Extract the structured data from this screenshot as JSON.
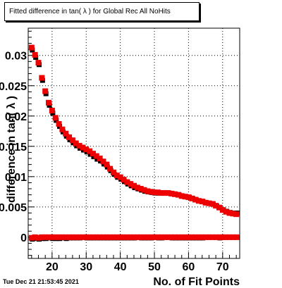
{
  "title": "Fitted difference in tan( λ ) for Global Rec All NoHits",
  "timestamp": "Tue Dec 21 21:53:45 2021",
  "chart_data": {
    "type": "scatter",
    "title": "Fitted difference in tan( λ ) for Global Rec All NoHits",
    "xlabel": "No. of Fit Points",
    "ylabel": "difference in tan( λ )",
    "xlim": [
      13,
      75
    ],
    "ylim": [
      -0.0035,
      0.0345
    ],
    "x_ticks": [
      20,
      30,
      40,
      50,
      60,
      70
    ],
    "y_ticks": [
      0,
      0.005,
      0.01,
      0.015,
      0.02,
      0.025,
      0.03
    ],
    "y_tick_labels": [
      "0",
      "0.005",
      "0.01",
      "0.015",
      "0.02",
      "0.025",
      "0.03"
    ],
    "grid": true,
    "colors": {
      "red": "#ee0000",
      "black": "#000000",
      "box": "#000000"
    },
    "series": [
      {
        "color": "red",
        "marker": "square",
        "points": [
          [
            14,
            0.0313
          ],
          [
            15,
            0.0301
          ],
          [
            16,
            0.0288
          ],
          [
            17,
            0.0263
          ],
          [
            18,
            0.0241
          ],
          [
            19,
            0.0222
          ],
          [
            20,
            0.0209
          ],
          [
            21,
            0.0197
          ],
          [
            22,
            0.0187
          ],
          [
            23,
            0.0178
          ],
          [
            24,
            0.0171
          ],
          [
            25,
            0.0165
          ],
          [
            26,
            0.016
          ],
          [
            27,
            0.0155
          ],
          [
            28,
            0.0151
          ],
          [
            29,
            0.0148
          ],
          [
            30,
            0.0145
          ],
          [
            31,
            0.0142
          ],
          [
            32,
            0.0138
          ],
          [
            33,
            0.0134
          ],
          [
            34,
            0.013
          ],
          [
            35,
            0.0125
          ],
          [
            36,
            0.012
          ],
          [
            37,
            0.0113
          ],
          [
            38,
            0.0107
          ],
          [
            39,
            0.0102
          ],
          [
            40,
            0.0099
          ],
          [
            41,
            0.0095
          ],
          [
            42,
            0.0091
          ],
          [
            43,
            0.0088
          ],
          [
            44,
            0.0085
          ],
          [
            45,
            0.0082
          ],
          [
            46,
            0.008
          ],
          [
            47,
            0.0078
          ],
          [
            48,
            0.0076
          ],
          [
            49,
            0.0075
          ],
          [
            50,
            0.0074
          ],
          [
            51,
            0.0074
          ],
          [
            52,
            0.0073
          ],
          [
            53,
            0.0073
          ],
          [
            54,
            0.0073
          ],
          [
            55,
            0.0072
          ],
          [
            56,
            0.0071
          ],
          [
            57,
            0.007
          ],
          [
            58,
            0.0068
          ],
          [
            59,
            0.0067
          ],
          [
            60,
            0.0066
          ],
          [
            61,
            0.0064
          ],
          [
            62,
            0.0062
          ],
          [
            63,
            0.006
          ],
          [
            64,
            0.0059
          ],
          [
            65,
            0.0057
          ],
          [
            66,
            0.0056
          ],
          [
            67,
            0.0055
          ],
          [
            68,
            0.0052
          ],
          [
            69,
            0.0049
          ],
          [
            70,
            0.0045
          ],
          [
            71,
            0.0042
          ],
          [
            72,
            0.004
          ],
          [
            73,
            0.0039
          ],
          [
            74,
            0.0038
          ]
        ]
      },
      {
        "color": "black",
        "marker": "square",
        "points": [
          [
            14,
            0.031
          ],
          [
            15,
            0.0298
          ],
          [
            16,
            0.0286
          ],
          [
            17,
            0.026
          ],
          [
            18,
            0.0238
          ],
          [
            19,
            0.0219
          ],
          [
            20,
            0.0206
          ],
          [
            21,
            0.0194
          ],
          [
            22,
            0.0184
          ],
          [
            23,
            0.0175
          ],
          [
            24,
            0.0168
          ],
          [
            25,
            0.0162
          ],
          [
            26,
            0.0157
          ],
          [
            27,
            0.0152
          ],
          [
            28,
            0.0148
          ],
          [
            29,
            0.0145
          ],
          [
            30,
            0.0142
          ],
          [
            31,
            0.0138
          ],
          [
            32,
            0.0134
          ],
          [
            33,
            0.013
          ],
          [
            34,
            0.0127
          ],
          [
            35,
            0.0122
          ],
          [
            36,
            0.0117
          ],
          [
            37,
            0.0111
          ],
          [
            38,
            0.0105
          ],
          [
            39,
            0.01
          ],
          [
            40,
            0.0097
          ],
          [
            41,
            0.0093
          ],
          [
            42,
            0.0089
          ],
          [
            43,
            0.0086
          ],
          [
            44,
            0.0083
          ],
          [
            45,
            0.0081
          ],
          [
            46,
            0.0079
          ],
          [
            47,
            0.0077
          ],
          [
            48,
            0.0076
          ],
          [
            49,
            0.0075
          ],
          [
            50,
            0.0074
          ],
          [
            51,
            0.0074
          ],
          [
            52,
            0.0074
          ],
          [
            53,
            0.0074
          ],
          [
            54,
            0.0074
          ],
          [
            55,
            0.0073
          ],
          [
            56,
            0.0072
          ],
          [
            57,
            0.0071
          ],
          [
            58,
            0.0069
          ],
          [
            59,
            0.0068
          ],
          [
            60,
            0.0067
          ],
          [
            61,
            0.0065
          ],
          [
            62,
            0.0063
          ],
          [
            63,
            0.0061
          ],
          [
            64,
            0.006
          ],
          [
            65,
            0.0058
          ],
          [
            66,
            0.0057
          ],
          [
            67,
            0.0056
          ],
          [
            68,
            0.0053
          ],
          [
            69,
            0.005
          ],
          [
            70,
            0.0046
          ],
          [
            71,
            0.0044
          ],
          [
            72,
            0.0042
          ],
          [
            73,
            0.0041
          ],
          [
            74,
            0.0041
          ]
        ]
      },
      {
        "color": "black",
        "marker": "square",
        "points": [
          [
            14,
            -0.0002
          ],
          [
            15,
            -0.0001
          ],
          [
            16,
            -0.0002
          ],
          [
            17,
            -0.0001
          ],
          [
            18,
            -0.0001
          ],
          [
            19,
            0.0
          ],
          [
            20,
            -0.0001
          ],
          [
            21,
            -0.0001
          ],
          [
            22,
            -0.0001
          ],
          [
            23,
            0.0
          ],
          [
            24,
            -0.0001
          ],
          [
            25,
            0.0
          ],
          [
            26,
            0.0
          ],
          [
            27,
            0.0
          ],
          [
            28,
            0.0
          ],
          [
            29,
            0.0001
          ],
          [
            30,
            0.0
          ],
          [
            31,
            0.0
          ],
          [
            32,
            0.0
          ],
          [
            33,
            0.0
          ],
          [
            34,
            0.0
          ],
          [
            35,
            0.0
          ],
          [
            36,
            0.0
          ],
          [
            37,
            0.0
          ],
          [
            38,
            0.0
          ],
          [
            39,
            0.0
          ],
          [
            40,
            0.0
          ],
          [
            41,
            0.0
          ],
          [
            42,
            0.0
          ],
          [
            43,
            0.0
          ],
          [
            44,
            0.0
          ],
          [
            45,
            0.0001
          ],
          [
            46,
            0.0
          ],
          [
            47,
            0.0
          ],
          [
            48,
            0.0
          ],
          [
            49,
            0.0
          ],
          [
            50,
            0.0001
          ],
          [
            51,
            0.0
          ],
          [
            52,
            0.0
          ],
          [
            53,
            0.0001
          ],
          [
            54,
            0.0001
          ],
          [
            55,
            0.0
          ],
          [
            56,
            0.0
          ],
          [
            57,
            0.0
          ],
          [
            58,
            0.0
          ],
          [
            59,
            0.0
          ],
          [
            60,
            0.0
          ],
          [
            61,
            0.0
          ],
          [
            62,
            0.0
          ],
          [
            63,
            0.0
          ],
          [
            64,
            0.0
          ],
          [
            65,
            0.0001
          ],
          [
            66,
            0.0001
          ],
          [
            67,
            0.0001
          ],
          [
            68,
            0.0001
          ],
          [
            69,
            0.0
          ],
          [
            70,
            0.0001
          ],
          [
            71,
            0.0001
          ],
          [
            72,
            0.0001
          ],
          [
            73,
            0.0001
          ],
          [
            74,
            0.0001
          ]
        ]
      },
      {
        "color": "red",
        "marker": "square",
        "points": [
          [
            14,
            -0.0001
          ],
          [
            15,
            0.0
          ],
          [
            16,
            -0.0001
          ],
          [
            17,
            0.0
          ],
          [
            18,
            0.0
          ],
          [
            19,
            0.0
          ],
          [
            20,
            0.0
          ],
          [
            21,
            0.0
          ],
          [
            22,
            0.0
          ],
          [
            23,
            0.0
          ],
          [
            24,
            0.0
          ],
          [
            25,
            0.0
          ],
          [
            26,
            0.0
          ],
          [
            27,
            0.0
          ],
          [
            28,
            0.0
          ],
          [
            29,
            0.0
          ],
          [
            30,
            0.0
          ],
          [
            31,
            0.0
          ],
          [
            32,
            0.0
          ],
          [
            33,
            0.0
          ],
          [
            34,
            0.0
          ],
          [
            35,
            0.0
          ],
          [
            36,
            0.0
          ],
          [
            37,
            0.0
          ],
          [
            38,
            0.0
          ],
          [
            39,
            0.0
          ],
          [
            40,
            0.0
          ],
          [
            41,
            0.0
          ],
          [
            42,
            0.0
          ],
          [
            43,
            0.0
          ],
          [
            44,
            0.0
          ],
          [
            45,
            0.0
          ],
          [
            46,
            0.0
          ],
          [
            47,
            0.0
          ],
          [
            48,
            0.0
          ],
          [
            49,
            0.0
          ],
          [
            50,
            0.0
          ],
          [
            51,
            0.0
          ],
          [
            52,
            0.0
          ],
          [
            53,
            0.0
          ],
          [
            54,
            0.0
          ],
          [
            55,
            0.0
          ],
          [
            56,
            0.0
          ],
          [
            57,
            0.0
          ],
          [
            58,
            0.0
          ],
          [
            59,
            0.0
          ],
          [
            60,
            0.0
          ],
          [
            61,
            0.0
          ],
          [
            62,
            0.0
          ],
          [
            63,
            0.0
          ],
          [
            64,
            0.0
          ],
          [
            65,
            0.0
          ],
          [
            66,
            0.0
          ],
          [
            67,
            0.0
          ],
          [
            68,
            0.0
          ],
          [
            69,
            0.0
          ],
          [
            70,
            0.0
          ],
          [
            71,
            0.0
          ],
          [
            72,
            0.0
          ],
          [
            73,
            0.0
          ],
          [
            74,
            0.0
          ]
        ]
      }
    ]
  }
}
